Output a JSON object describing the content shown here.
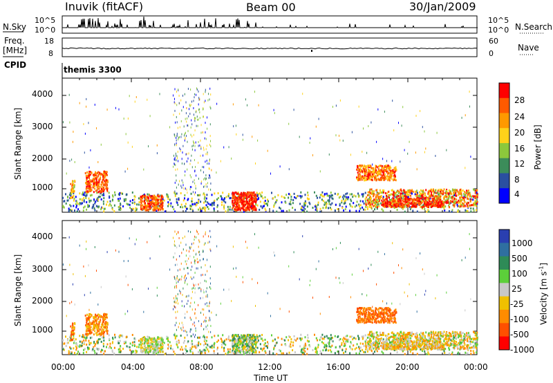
{
  "header": {
    "station": "Inuvik (fitACF)",
    "beam": "Beam 00",
    "date": "30/Jan/2009"
  },
  "left_labels": {
    "nsky": "N.Sky",
    "freq_line1": "Freq.",
    "freq_line2": "[MHz]",
    "cpid": "CPID"
  },
  "right_labels": {
    "nsearch": "N.Search",
    "nave": "Nave"
  },
  "cpid_value": "themis 3300",
  "chart_data": [
    {
      "type": "line",
      "name": "noise",
      "left_axis_ticks": [
        "10^5",
        "10^0"
      ],
      "right_axis_ticks": [
        "10^5",
        "10^0"
      ],
      "left_label": "N.Sky",
      "right_label": "N.Search"
    },
    {
      "type": "line",
      "name": "frequency-nave",
      "left_axis_ticks": [
        "18",
        "8"
      ],
      "right_axis_ticks": [
        "60",
        "0"
      ],
      "left_label": "Freq. [MHz]",
      "right_label": "Nave"
    },
    {
      "type": "heatmap",
      "name": "power",
      "ylabel": "Slant Range [km]",
      "y_ticks": [
        "4000",
        "3000",
        "2000",
        "1000"
      ],
      "colorbar_label": "Power [dB]",
      "colorbar_ticks": [
        "28",
        "24",
        "20",
        "16",
        "12",
        "8",
        "4"
      ],
      "colorbar_colors": [
        "#ff0000",
        "#ff5a00",
        "#ff9900",
        "#ffd21a",
        "#8cc83c",
        "#3c8c5a",
        "#2a4fa0",
        "#0000ff"
      ]
    },
    {
      "type": "heatmap",
      "name": "velocity",
      "ylabel": "Slant Range [km]",
      "y_ticks": [
        "4000",
        "3000",
        "2000",
        "1000"
      ],
      "colorbar_label": "Velocity [m s^-1]",
      "colorbar_ticks": [
        "1000",
        "500",
        "100",
        "25",
        "-25",
        "-100",
        "-500",
        "-1000"
      ],
      "colorbar_colors": [
        "#2a3fb0",
        "#2f6fa0",
        "#2e8b57",
        "#5ccf3a",
        "#c8c8c8",
        "#f0c000",
        "#ff8c00",
        "#ff5000",
        "#ff0000"
      ]
    }
  ],
  "x_axis": {
    "ticks": [
      "00:00",
      "04:00",
      "08:00",
      "12:00",
      "16:00",
      "20:00",
      "00:00"
    ],
    "label": "Time UT"
  }
}
